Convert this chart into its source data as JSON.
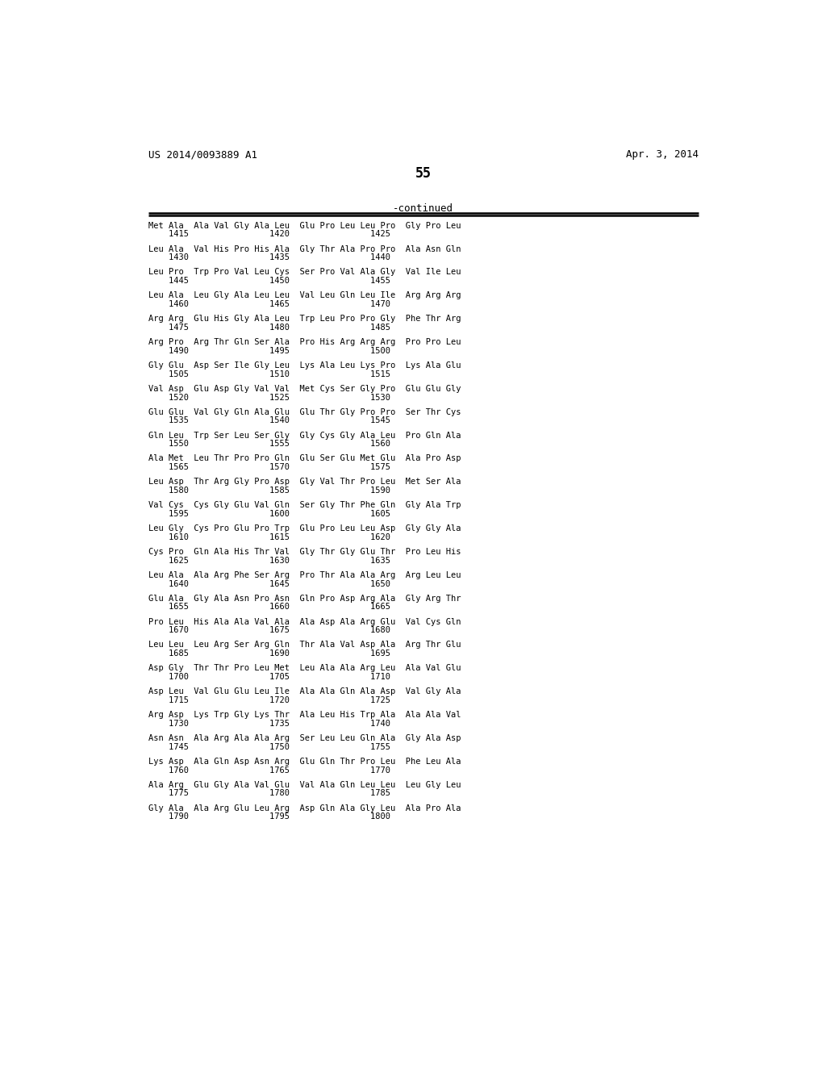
{
  "header_left": "US 2014/0093889 A1",
  "header_right": "Apr. 3, 2014",
  "page_number": "55",
  "continued_label": "-continued",
  "background_color": "#ffffff",
  "text_color": "#000000",
  "font_size": 7.5,
  "rows": [
    {
      "line1": "Met Ala  Ala Val Gly Ala Leu  Glu Pro Leu Leu Pro  Gly Pro Leu",
      "line2": "    1415                1420                1425"
    },
    {
      "line1": "Leu Ala  Val His Pro His Ala  Gly Thr Ala Pro Pro  Ala Asn Gln",
      "line2": "    1430                1435                1440"
    },
    {
      "line1": "Leu Pro  Trp Pro Val Leu Cys  Ser Pro Val Ala Gly  Val Ile Leu",
      "line2": "    1445                1450                1455"
    },
    {
      "line1": "Leu Ala  Leu Gly Ala Leu Leu  Val Leu Gln Leu Ile  Arg Arg Arg",
      "line2": "    1460                1465                1470"
    },
    {
      "line1": "Arg Arg  Glu His Gly Ala Leu  Trp Leu Pro Pro Gly  Phe Thr Arg",
      "line2": "    1475                1480                1485"
    },
    {
      "line1": "Arg Pro  Arg Thr Gln Ser Ala  Pro His Arg Arg Arg  Pro Pro Leu",
      "line2": "    1490                1495                1500"
    },
    {
      "line1": "Gly Glu  Asp Ser Ile Gly Leu  Lys Ala Leu Lys Pro  Lys Ala Glu",
      "line2": "    1505                1510                1515"
    },
    {
      "line1": "Val Asp  Glu Asp Gly Val Val  Met Cys Ser Gly Pro  Glu Glu Gly",
      "line2": "    1520                1525                1530"
    },
    {
      "line1": "Glu Glu  Val Gly Gln Ala Glu  Glu Thr Gly Pro Pro  Ser Thr Cys",
      "line2": "    1535                1540                1545"
    },
    {
      "line1": "Gln Leu  Trp Ser Leu Ser Gly  Gly Cys Gly Ala Leu  Pro Gln Ala",
      "line2": "    1550                1555                1560"
    },
    {
      "line1": "Ala Met  Leu Thr Pro Pro Gln  Glu Ser Glu Met Glu  Ala Pro Asp",
      "line2": "    1565                1570                1575"
    },
    {
      "line1": "Leu Asp  Thr Arg Gly Pro Asp  Gly Val Thr Pro Leu  Met Ser Ala",
      "line2": "    1580                1585                1590"
    },
    {
      "line1": "Val Cys  Cys Gly Glu Val Gln  Ser Gly Thr Phe Gln  Gly Ala Trp",
      "line2": "    1595                1600                1605"
    },
    {
      "line1": "Leu Gly  Cys Pro Glu Pro Trp  Glu Pro Leu Leu Asp  Gly Gly Ala",
      "line2": "    1610                1615                1620"
    },
    {
      "line1": "Cys Pro  Gln Ala His Thr Val  Gly Thr Gly Glu Thr  Pro Leu His",
      "line2": "    1625                1630                1635"
    },
    {
      "line1": "Leu Ala  Ala Arg Phe Ser Arg  Pro Thr Ala Ala Arg  Arg Leu Leu",
      "line2": "    1640                1645                1650"
    },
    {
      "line1": "Glu Ala  Gly Ala Asn Pro Asn  Gln Pro Asp Arg Ala  Gly Arg Thr",
      "line2": "    1655                1660                1665"
    },
    {
      "line1": "Pro Leu  His Ala Ala Val Ala  Ala Asp Ala Arg Glu  Val Cys Gln",
      "line2": "    1670                1675                1680"
    },
    {
      "line1": "Leu Leu  Leu Arg Ser Arg Gln  Thr Ala Val Asp Ala  Arg Thr Glu",
      "line2": "    1685                1690                1695"
    },
    {
      "line1": "Asp Gly  Thr Thr Pro Leu Met  Leu Ala Ala Arg Leu  Ala Val Glu",
      "line2": "    1700                1705                1710"
    },
    {
      "line1": "Asp Leu  Val Glu Glu Leu Ile  Ala Ala Gln Ala Asp  Val Gly Ala",
      "line2": "    1715                1720                1725"
    },
    {
      "line1": "Arg Asp  Lys Trp Gly Lys Thr  Ala Leu His Trp Ala  Ala Ala Val",
      "line2": "    1730                1735                1740"
    },
    {
      "line1": "Asn Asn  Ala Arg Ala Ala Arg  Ser Leu Leu Gln Ala  Gly Ala Asp",
      "line2": "    1745                1750                1755"
    },
    {
      "line1": "Lys Asp  Ala Gln Asp Asn Arg  Glu Gln Thr Pro Leu  Phe Leu Ala",
      "line2": "    1760                1765                1770"
    },
    {
      "line1": "Ala Arg  Glu Gly Ala Val Glu  Val Ala Gln Leu Leu  Leu Gly Leu",
      "line2": "    1775                1780                1785"
    },
    {
      "line1": "Gly Ala  Ala Arg Glu Leu Arg  Asp Gln Ala Gly Leu  Ala Pro Ala",
      "line2": "    1790                1795                1800"
    }
  ]
}
